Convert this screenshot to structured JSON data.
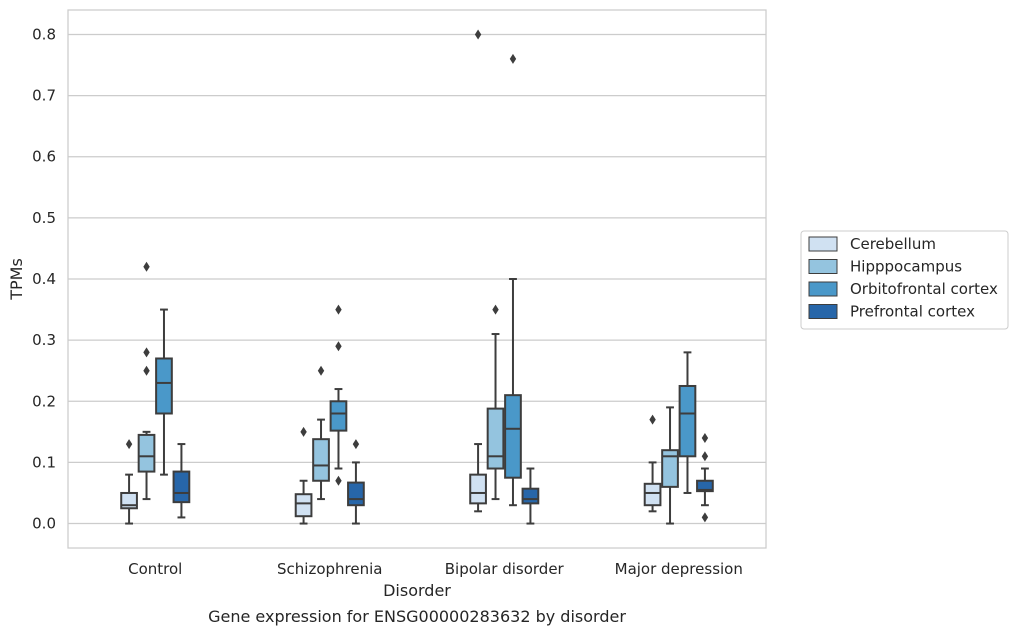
{
  "chart_data": {
    "type": "box",
    "xlabel": "Disorder",
    "ylabel": "TPMs",
    "caption": "Gene expression for ENSG00000283632 by disorder",
    "ylim": [
      -0.04,
      0.84
    ],
    "yticks": [
      0.0,
      0.1,
      0.2,
      0.3,
      0.4,
      0.5,
      0.6,
      0.7,
      0.8
    ],
    "ytick_labels": [
      "0.0",
      "0.1",
      "0.2",
      "0.3",
      "0.4",
      "0.5",
      "0.6",
      "0.7",
      "0.8"
    ],
    "grid": true,
    "legend_position": "right",
    "categories": [
      "Control",
      "Schizophrenia",
      "Bipolar disorder",
      "Major depression"
    ],
    "series": [
      {
        "name": "Cerebellum",
        "color": "#d0e1f2",
        "boxes": [
          {
            "whislo": 0.0,
            "q1": 0.025,
            "med": 0.03,
            "q3": 0.05,
            "whishi": 0.08,
            "fliers": [
              0.13
            ]
          },
          {
            "whislo": 0.0,
            "q1": 0.012,
            "med": 0.033,
            "q3": 0.048,
            "whishi": 0.07,
            "fliers": [
              0.15
            ]
          },
          {
            "whislo": 0.02,
            "q1": 0.033,
            "med": 0.05,
            "q3": 0.08,
            "whishi": 0.13,
            "fliers": [
              0.8
            ]
          },
          {
            "whislo": 0.02,
            "q1": 0.03,
            "med": 0.05,
            "q3": 0.065,
            "whishi": 0.1,
            "fliers": [
              0.17
            ]
          }
        ]
      },
      {
        "name": "Hipppocampus",
        "color": "#94c4df",
        "boxes": [
          {
            "whislo": 0.04,
            "q1": 0.085,
            "med": 0.11,
            "q3": 0.145,
            "whishi": 0.15,
            "fliers": [
              0.25,
              0.28,
              0.42
            ]
          },
          {
            "whislo": 0.04,
            "q1": 0.07,
            "med": 0.095,
            "q3": 0.138,
            "whishi": 0.17,
            "fliers": [
              0.25
            ]
          },
          {
            "whislo": 0.04,
            "q1": 0.09,
            "med": 0.11,
            "q3": 0.188,
            "whishi": 0.31,
            "fliers": [
              0.35
            ]
          },
          {
            "whislo": 0.0,
            "q1": 0.06,
            "med": 0.11,
            "q3": 0.12,
            "whishi": 0.19,
            "fliers": []
          }
        ]
      },
      {
        "name": "Orbitofrontal cortex",
        "color": "#4a98c9",
        "boxes": [
          {
            "whislo": 0.08,
            "q1": 0.18,
            "med": 0.23,
            "q3": 0.27,
            "whishi": 0.35,
            "fliers": []
          },
          {
            "whislo": 0.09,
            "q1": 0.152,
            "med": 0.18,
            "q3": 0.2,
            "whishi": 0.22,
            "fliers": [
              0.07,
              0.29,
              0.35
            ]
          },
          {
            "whislo": 0.03,
            "q1": 0.075,
            "med": 0.155,
            "q3": 0.21,
            "whishi": 0.4,
            "fliers": [
              0.76
            ]
          },
          {
            "whislo": 0.05,
            "q1": 0.11,
            "med": 0.18,
            "q3": 0.225,
            "whishi": 0.28,
            "fliers": []
          }
        ]
      },
      {
        "name": "Prefrontal cortex",
        "color": "#2766a9",
        "boxes": [
          {
            "whislo": 0.01,
            "q1": 0.035,
            "med": 0.05,
            "q3": 0.085,
            "whishi": 0.13,
            "fliers": []
          },
          {
            "whislo": 0.0,
            "q1": 0.03,
            "med": 0.04,
            "q3": 0.067,
            "whishi": 0.1,
            "fliers": [
              0.13
            ]
          },
          {
            "whislo": 0.0,
            "q1": 0.033,
            "med": 0.04,
            "q3": 0.057,
            "whishi": 0.09,
            "fliers": []
          },
          {
            "whislo": 0.03,
            "q1": 0.053,
            "med": 0.055,
            "q3": 0.07,
            "whishi": 0.09,
            "fliers": [
              0.01,
              0.11,
              0.14
            ]
          }
        ]
      }
    ]
  }
}
